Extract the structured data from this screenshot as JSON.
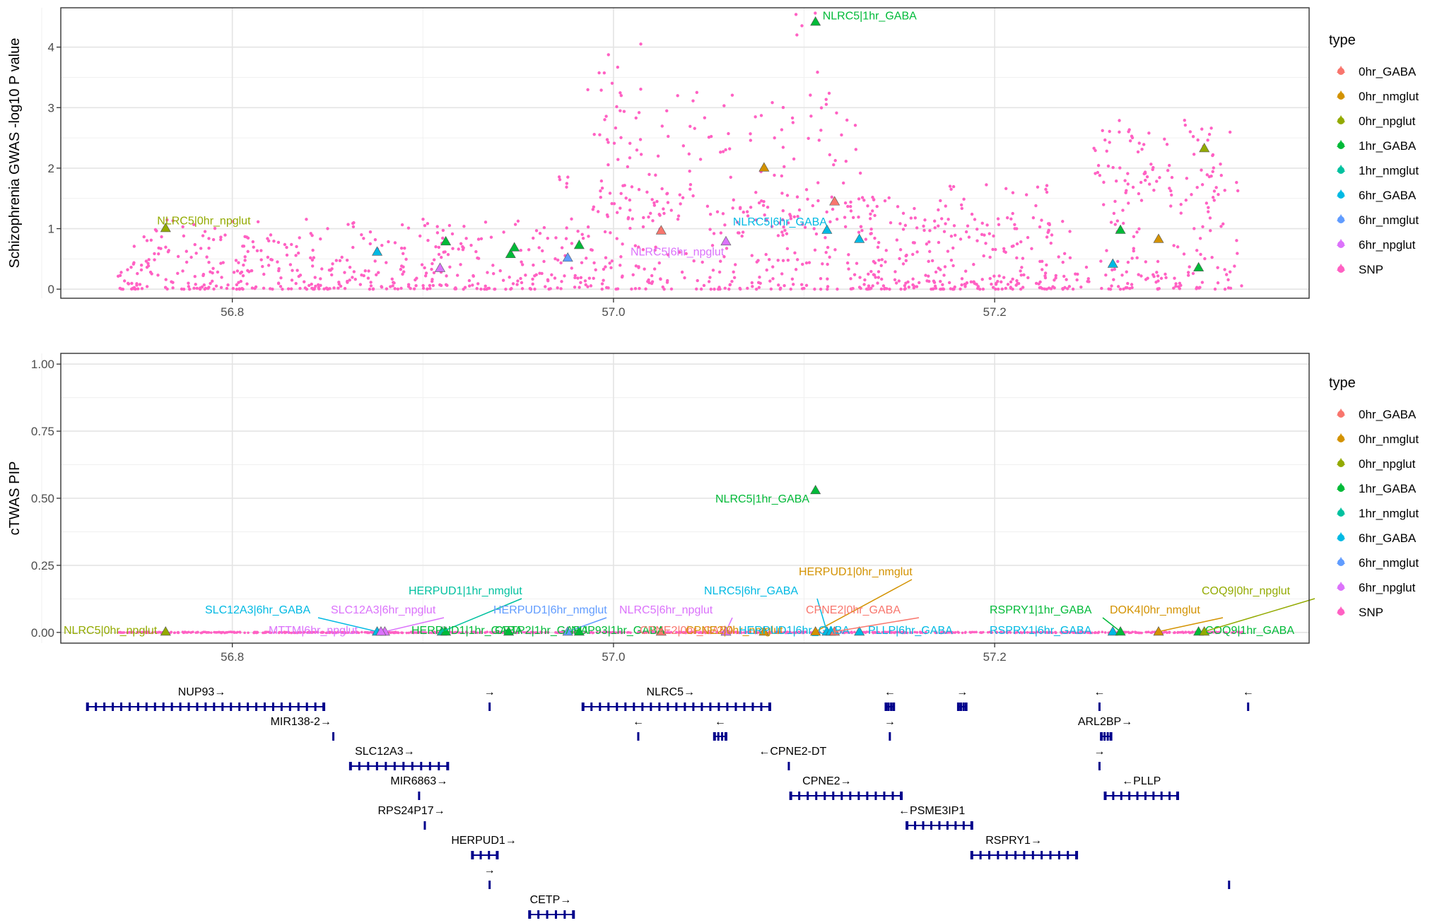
{
  "chart_data": [
    {
      "type": "scatter",
      "panel": "gwas",
      "xlabel": "",
      "ylabel": "Schizophrenia GWAS -log10 P value",
      "xlim": [
        56.71,
        57.365
      ],
      "ylim": [
        -0.15,
        4.65
      ],
      "xticks": [
        56.8,
        57.0,
        57.2
      ],
      "xtick_labels": [
        "56.8",
        "57.0",
        "57.2"
      ],
      "yticks": [
        0,
        1,
        2,
        3,
        4
      ],
      "ytick_labels": [
        "0",
        "1",
        "2",
        "3",
        "4"
      ],
      "grid": true,
      "legend_title": "type",
      "legend_position": "right",
      "snp_series": {
        "name": "SNP",
        "color": "#FF61C3",
        "points": []
      },
      "gene_points": [
        {
          "x": 56.765,
          "y": 1.01,
          "type": "0hr_npglut",
          "label": "NLRC5|0hr_npglut"
        },
        {
          "x": 56.876,
          "y": 0.62,
          "type": "6hr_GABA",
          "label": ""
        },
        {
          "x": 56.909,
          "y": 0.35,
          "type": "6hr_npglut",
          "label": ""
        },
        {
          "x": 56.912,
          "y": 0.79,
          "type": "1hr_GABA",
          "label": ""
        },
        {
          "x": 56.946,
          "y": 0.58,
          "type": "1hr_GABA",
          "label": ""
        },
        {
          "x": 56.948,
          "y": 0.69,
          "type": "1hr_GABA",
          "label": ""
        },
        {
          "x": 56.976,
          "y": 0.52,
          "type": "6hr_nmglut",
          "label": ""
        },
        {
          "x": 56.982,
          "y": 0.73,
          "type": "1hr_GABA",
          "label": ""
        },
        {
          "x": 57.025,
          "y": 0.97,
          "type": "0hr_GABA",
          "label": ""
        },
        {
          "x": 57.059,
          "y": 0.79,
          "type": "6hr_npglut",
          "label": "NLRC5|6hr_npglut"
        },
        {
          "x": 57.079,
          "y": 2.01,
          "type": "0hr_nmglut",
          "label": ""
        },
        {
          "x": 57.106,
          "y": 4.42,
          "type": "1hr_GABA",
          "label": "NLRC5|1hr_GABA"
        },
        {
          "x": 57.112,
          "y": 0.98,
          "type": "6hr_GABA",
          "label": "NLRC5|6hr_GABA"
        },
        {
          "x": 57.116,
          "y": 1.45,
          "type": "0hr_GABA",
          "label": ""
        },
        {
          "x": 57.129,
          "y": 0.83,
          "type": "6hr_GABA",
          "label": ""
        },
        {
          "x": 57.262,
          "y": 0.42,
          "type": "6hr_GABA",
          "label": ""
        },
        {
          "x": 57.266,
          "y": 0.98,
          "type": "1hr_GABA",
          "label": ""
        },
        {
          "x": 57.286,
          "y": 0.83,
          "type": "0hr_nmglut",
          "label": ""
        },
        {
          "x": 57.307,
          "y": 0.36,
          "type": "1hr_GABA",
          "label": ""
        },
        {
          "x": 57.31,
          "y": 2.33,
          "type": "0hr_npglut",
          "label": ""
        }
      ]
    },
    {
      "type": "scatter",
      "panel": "ctwas",
      "xlabel": "",
      "ylabel": "cTWAS PIP",
      "xlim": [
        56.71,
        57.365
      ],
      "ylim": [
        -0.04,
        1.04
      ],
      "xticks": [
        56.8,
        57.0,
        57.2
      ],
      "xtick_labels": [
        "56.8",
        "57.0",
        "57.2"
      ],
      "yticks": [
        0,
        0.25,
        0.5,
        0.75,
        1.0
      ],
      "ytick_labels": [
        "0.00",
        "0.25",
        "0.50",
        "0.75",
        "1.00"
      ],
      "grid": true,
      "legend_title": "type",
      "legend_position": "right",
      "snp_series": {
        "name": "SNP",
        "color": "#FF61C3",
        "y": 0.0
      },
      "gene_points": [
        {
          "x": 56.765,
          "y": 0.003,
          "type": "0hr_npglut",
          "label": "NLRC5|0hr_npglut"
        },
        {
          "x": 56.876,
          "y": 0.003,
          "type": "6hr_GABA",
          "label": "SLC12A3|6hr_GABA"
        },
        {
          "x": 56.88,
          "y": 0.003,
          "type": "6hr_npglut",
          "label": "SLC12A3|6hr_npglut"
        },
        {
          "x": 56.878,
          "y": 0.003,
          "type": "6hr_npglut",
          "label": "MTTM|6hr_npglut"
        },
        {
          "x": 56.91,
          "y": 0.003,
          "type": "1hr_nmglut",
          "label": "HERPUD1|1hr_nmglut"
        },
        {
          "x": 56.912,
          "y": 0.003,
          "type": "1hr_GABA",
          "label": "HERPUD1|1hr_GABA"
        },
        {
          "x": 56.945,
          "y": 0.003,
          "type": "1hr_GABA",
          "label": "CETP2|1hr_GABA"
        },
        {
          "x": 56.976,
          "y": 0.003,
          "type": "6hr_nmglut",
          "label": "HERPUD1|6hr_nmglut"
        },
        {
          "x": 56.982,
          "y": 0.003,
          "type": "1hr_GABA",
          "label": "NUP93|1hr_GABA"
        },
        {
          "x": 57.025,
          "y": 0.003,
          "type": "0hr_GABA",
          "label": "CPNE2|0hr_GABA"
        },
        {
          "x": 57.059,
          "y": 0.003,
          "type": "6hr_npglut",
          "label": "NLRC5|6hr_npglut"
        },
        {
          "x": 57.079,
          "y": 0.003,
          "type": "0hr_nmglut",
          "label": "CPNE2|0hr_nmglut"
        },
        {
          "x": 57.106,
          "y": 0.53,
          "type": "1hr_GABA",
          "label": "NLRC5|1hr_GABA"
        },
        {
          "x": 57.106,
          "y": 0.003,
          "type": "0hr_nmglut",
          "label": "HERPUD1|0hr_nmglut"
        },
        {
          "x": 57.112,
          "y": 0.003,
          "type": "6hr_GABA",
          "label": "NLRC5|6hr_GABA"
        },
        {
          "x": 57.114,
          "y": 0.003,
          "type": "6hr_GABA",
          "label": "HERPUD1|6hr_GABA"
        },
        {
          "x": 57.116,
          "y": 0.003,
          "type": "0hr_GABA",
          "label": "CPNE2|0hr_GABA"
        },
        {
          "x": 57.129,
          "y": 0.003,
          "type": "6hr_GABA",
          "label": "PLLP|6hr_GABA"
        },
        {
          "x": 57.262,
          "y": 0.003,
          "type": "6hr_GABA",
          "label": "RSPRY1|6hr_GABA"
        },
        {
          "x": 57.266,
          "y": 0.003,
          "type": "1hr_GABA",
          "label": "RSPRY1|1hr_GABA"
        },
        {
          "x": 57.286,
          "y": 0.003,
          "type": "0hr_nmglut",
          "label": "DOK4|0hr_nmglut"
        },
        {
          "x": 57.307,
          "y": 0.003,
          "type": "1hr_GABA",
          "label": "COQ9|1hr_GABA"
        },
        {
          "x": 57.31,
          "y": 0.003,
          "type": "0hr_npglut",
          "label": "COQ9|0hr_npglut"
        }
      ]
    }
  ],
  "legend": {
    "title": "type",
    "items": [
      {
        "name": "0hr_GABA",
        "color": "#F8766D"
      },
      {
        "name": "0hr_nmglut",
        "color": "#D39200"
      },
      {
        "name": "0hr_npglut",
        "color": "#93AA00"
      },
      {
        "name": "1hr_GABA",
        "color": "#00BA38"
      },
      {
        "name": "1hr_nmglut",
        "color": "#00C19F"
      },
      {
        "name": "6hr_GABA",
        "color": "#00B9E3"
      },
      {
        "name": "6hr_nmglut",
        "color": "#619CFF"
      },
      {
        "name": "6hr_npglut",
        "color": "#DB72FB"
      },
      {
        "name": "SNP",
        "color": "#FF61C3"
      }
    ]
  },
  "gene_track": {
    "color": "#00008B",
    "genes": [
      {
        "name": "NUP93→",
        "row": 0,
        "start": 56.724,
        "end": 56.848,
        "label_x": 56.784
      },
      {
        "name": "→",
        "row": 0,
        "start": 56.935,
        "end": 56.936,
        "label_x": 56.935
      },
      {
        "name": "NLRC5→",
        "row": 0,
        "start": 56.984,
        "end": 57.082,
        "label_x": 57.03
      },
      {
        "name": "←",
        "row": 0,
        "start": 57.143,
        "end": 57.147,
        "label_x": 57.145
      },
      {
        "name": "→",
        "row": 0,
        "start": 57.181,
        "end": 57.185,
        "label_x": 57.183
      },
      {
        "name": "←",
        "row": 0,
        "start": 57.255,
        "end": 57.256,
        "label_x": 57.255
      },
      {
        "name": "←",
        "row": 0,
        "start": 57.333,
        "end": 57.334,
        "label_x": 57.333
      },
      {
        "name": "MIR138-2→",
        "row": 1,
        "start": 56.853,
        "end": 56.854,
        "label_x": 56.836
      },
      {
        "name": "←",
        "row": 1,
        "start": 57.013,
        "end": 57.014,
        "label_x": 57.013
      },
      {
        "name": "←",
        "row": 1,
        "start": 57.053,
        "end": 57.059,
        "label_x": 57.056
      },
      {
        "name": "→",
        "row": 1,
        "start": 57.145,
        "end": 57.146,
        "label_x": 57.145
      },
      {
        "name": "ARL2BP→",
        "row": 1,
        "start": 57.256,
        "end": 57.261,
        "label_x": 57.258
      },
      {
        "name": "SLC12A3→",
        "row": 2,
        "start": 56.862,
        "end": 56.913,
        "label_x": 56.88
      },
      {
        "name": "←CPNE2-DT",
        "row": 2,
        "start": 57.092,
        "end": 57.093,
        "label_x": 57.094
      },
      {
        "name": "→",
        "row": 2,
        "start": 57.255,
        "end": 57.256,
        "label_x": 57.255
      },
      {
        "name": "MIR6863→",
        "row": 3,
        "start": 56.898,
        "end": 56.899,
        "label_x": 56.898
      },
      {
        "name": "CPNE2→",
        "row": 3,
        "start": 57.093,
        "end": 57.151,
        "label_x": 57.112
      },
      {
        "name": "←PLLP",
        "row": 3,
        "start": 57.258,
        "end": 57.296,
        "label_x": 57.277
      },
      {
        "name": "RPS24P17→",
        "row": 4,
        "start": 56.901,
        "end": 56.902,
        "label_x": 56.894
      },
      {
        "name": "←PSME3IP1",
        "row": 4,
        "start": 57.154,
        "end": 57.188,
        "label_x": 57.167
      },
      {
        "name": "HERPUD1→",
        "row": 5,
        "start": 56.926,
        "end": 56.939,
        "label_x": 56.932
      },
      {
        "name": "RSPRY1→",
        "row": 5,
        "start": 57.188,
        "end": 57.243,
        "label_x": 57.21
      },
      {
        "name": "→",
        "row": 6,
        "start": 56.935,
        "end": 56.936,
        "label_x": 56.935
      },
      {
        "name": "",
        "row": 6,
        "start": 57.323,
        "end": 57.324,
        "label_x": 57.323
      },
      {
        "name": "CETP→",
        "row": 7,
        "start": 56.956,
        "end": 56.979,
        "label_x": 56.967
      }
    ]
  }
}
